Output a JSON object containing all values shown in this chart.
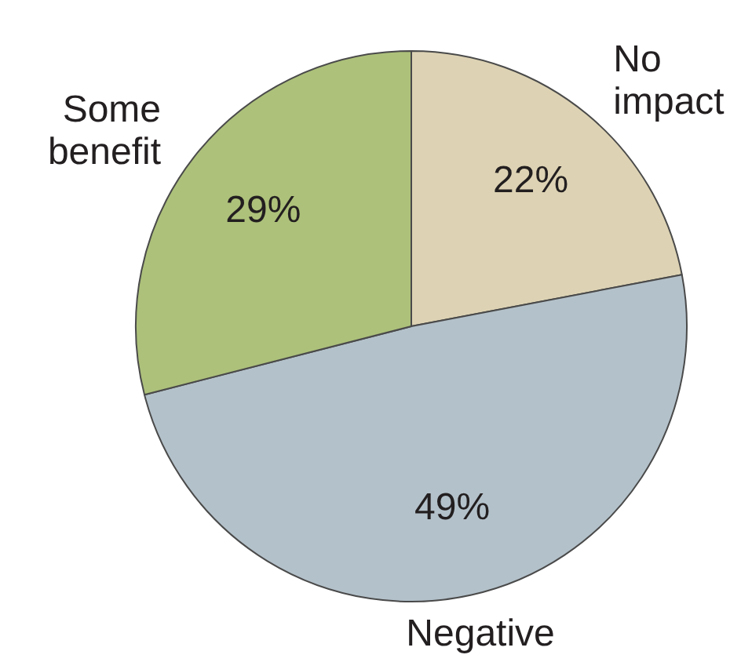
{
  "chart_data": {
    "type": "pie",
    "categories": [
      "No impact",
      "Negative",
      "Some benefit"
    ],
    "values": [
      22,
      49,
      29
    ],
    "colors": [
      "#ddd3b4",
      "#b3c1ca",
      "#adc17a"
    ],
    "value_labels": [
      "22%",
      "49%",
      "29%"
    ],
    "legend": false
  }
}
